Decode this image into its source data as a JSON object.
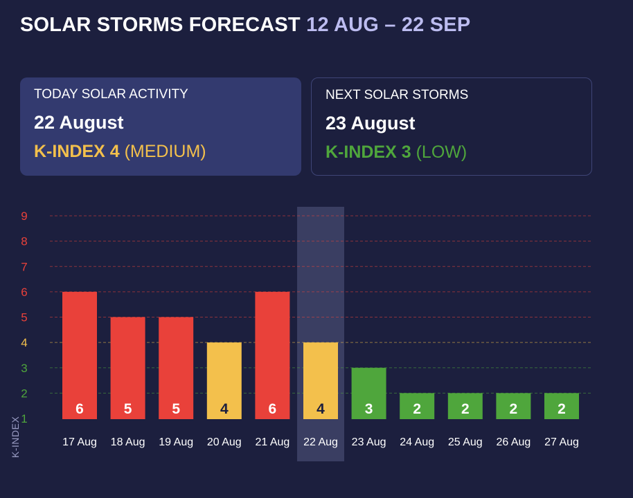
{
  "header": {
    "title": "SOLAR STORMS FORECAST",
    "range": "12 AUG – 22 SEP"
  },
  "today_card": {
    "label": "TODAY SOLAR ACTIVITY",
    "date": "22 August",
    "kindex": "K-INDEX 4",
    "level": "(MEDIUM)"
  },
  "next_card": {
    "label": "NEXT SOLAR STORMS",
    "date": "23 August",
    "kindex": "K-INDEX 3",
    "level": "(LOW)"
  },
  "colors": {
    "high": "#e9413a",
    "medium": "#f3c04c",
    "low": "#4fa63c",
    "background": "#1c1f3e",
    "highlight": "#3a3e62"
  },
  "chart_data": {
    "type": "bar",
    "categories": [
      "17 Aug",
      "18 Aug",
      "19 Aug",
      "20 Aug",
      "21 Aug",
      "22 Aug",
      "23 Aug",
      "24 Aug",
      "25 Aug",
      "26 Aug",
      "27 Aug"
    ],
    "values": [
      6,
      5,
      5,
      4,
      6,
      4,
      3,
      2,
      2,
      2,
      2
    ],
    "ylabel": "K-INDEX",
    "ylim": [
      1,
      9
    ],
    "yticks": [
      1,
      2,
      3,
      4,
      5,
      6,
      7,
      8,
      9
    ],
    "highlight_category": "22 Aug",
    "grid": true
  }
}
